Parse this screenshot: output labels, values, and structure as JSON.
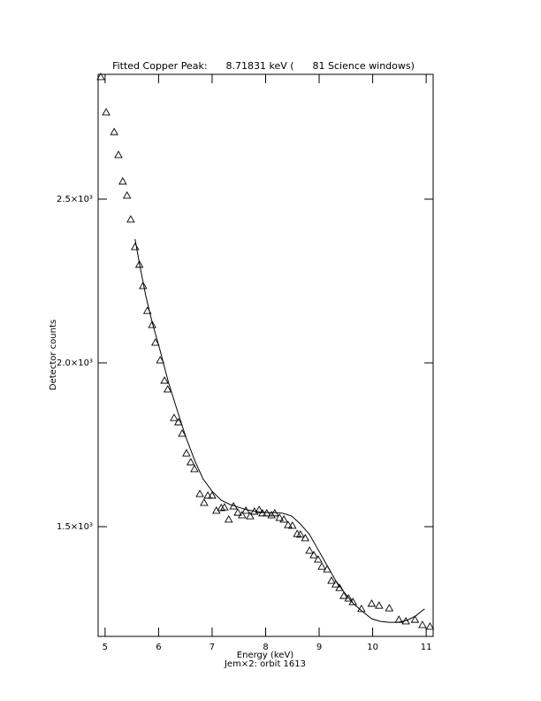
{
  "chart_data": {
    "type": "scatter",
    "title": "Fitted Copper Peak:      8.71831 keV (      81 Science windows)",
    "subtitle": "Jem×2: orbit 1613",
    "x_label": "Energy (keV)",
    "y_label": "Detector counts",
    "xlim": [
      4.87,
      11.13
    ],
    "ylim": [
      1165,
      2881
    ],
    "xticks": [
      5,
      6,
      7,
      8,
      9,
      10,
      11
    ],
    "yticks": [
      {
        "value": 1500,
        "label": "1.5×10³"
      },
      {
        "value": 2000,
        "label": "2.0×10³"
      },
      {
        "value": 2500,
        "label": "2.5×10³"
      }
    ],
    "series": [
      {
        "type": "scatter",
        "color": "#000000",
        "x": [
          4.92,
          5.02,
          5.17,
          5.25,
          5.33,
          5.41,
          5.48,
          5.56,
          5.64,
          5.71,
          5.79,
          5.88,
          5.94,
          6.03,
          6.11,
          6.17,
          6.29,
          6.37,
          6.44,
          6.52,
          6.6,
          6.67,
          6.77,
          6.85,
          6.92,
          7.0,
          7.08,
          7.17,
          7.23,
          7.31,
          7.4,
          7.48,
          7.56,
          7.63,
          7.71,
          7.79,
          7.88,
          7.94,
          8.02,
          8.11,
          8.17,
          8.26,
          8.34,
          8.42,
          8.5,
          8.59,
          8.65,
          8.74,
          8.82,
          8.9,
          8.98,
          9.05,
          9.15,
          9.23,
          9.31,
          9.38,
          9.46,
          9.55,
          9.63,
          9.79,
          9.98,
          10.12,
          10.31,
          10.49,
          10.62,
          10.79,
          10.93,
          11.07
        ],
        "values": [
          2873,
          2765,
          2705,
          2635,
          2554,
          2511,
          2438,
          2354,
          2300,
          2235,
          2159,
          2116,
          2062,
          2008,
          1946,
          1919,
          1832,
          1819,
          1784,
          1724,
          1697,
          1676,
          1600,
          1573,
          1595,
          1595,
          1549,
          1557,
          1559,
          1522,
          1562,
          1543,
          1535,
          1549,
          1532,
          1546,
          1551,
          1541,
          1541,
          1535,
          1541,
          1527,
          1522,
          1505,
          1503,
          1478,
          1476,
          1465,
          1427,
          1413,
          1400,
          1378,
          1370,
          1335,
          1324,
          1313,
          1289,
          1281,
          1270,
          1249,
          1265,
          1259,
          1251,
          1216,
          1211,
          1216,
          1200,
          1195
        ]
      },
      {
        "type": "line",
        "color": "#000000",
        "x": [
          5.56,
          5.64,
          5.76,
          5.88,
          6.02,
          6.18,
          6.35,
          6.51,
          6.68,
          6.83,
          7.0,
          7.17,
          7.33,
          7.5,
          7.66,
          7.83,
          7.99,
          8.16,
          8.32,
          8.49,
          8.65,
          8.82,
          8.98,
          9.15,
          9.31,
          9.48,
          9.64,
          9.81,
          9.98,
          10.14,
          10.31,
          10.47,
          10.64,
          10.8,
          10.97
        ],
        "values": [
          2378,
          2305,
          2205,
          2124,
          2043,
          1943,
          1854,
          1773,
          1700,
          1646,
          1608,
          1581,
          1568,
          1559,
          1551,
          1546,
          1543,
          1543,
          1541,
          1532,
          1508,
          1476,
          1430,
          1381,
          1335,
          1297,
          1265,
          1241,
          1219,
          1211,
          1208,
          1208,
          1214,
          1227,
          1249
        ]
      }
    ]
  }
}
